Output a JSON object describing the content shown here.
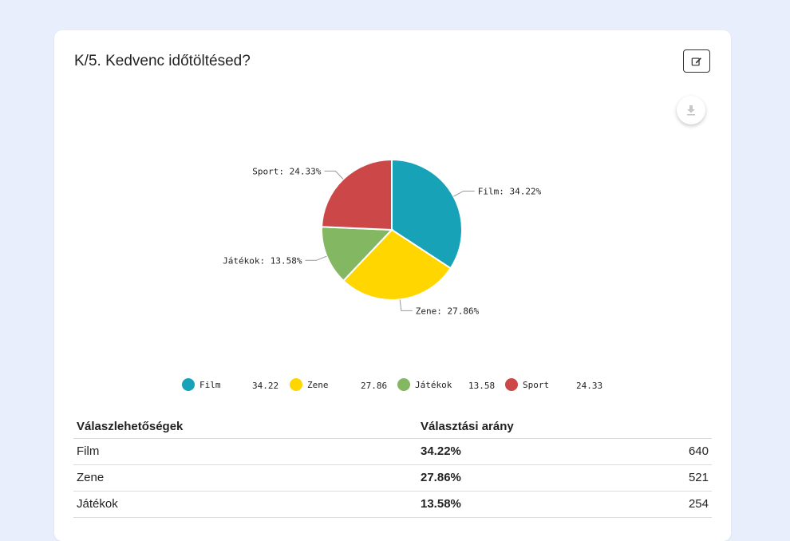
{
  "question": {
    "title": "K/5. Kedvenc időtöltésed?"
  },
  "icons": {
    "edit": "edit-icon",
    "download": "download-icon"
  },
  "chart_data": {
    "type": "pie",
    "categories": [
      "Film",
      "Zene",
      "Játékok",
      "Sport"
    ],
    "values": [
      34.22,
      27.86,
      13.58,
      24.33
    ],
    "colors": [
      "#17a2b8",
      "#ffd600",
      "#84b761",
      "#cc4748"
    ],
    "slice_labels": [
      "Film: 34.22%",
      "Zene: 27.86%",
      "Játékok: 13.58%",
      "Sport: 24.33%"
    ],
    "legend_values": [
      "34.22",
      "27.86",
      "13.58",
      "24.33"
    ],
    "legend_position": "bottom"
  },
  "table": {
    "headers": [
      "Válaszlehetőségek",
      "Választási arány",
      ""
    ],
    "rows": [
      {
        "label": "Film",
        "percent": "34.22%",
        "count": "640"
      },
      {
        "label": "Zene",
        "percent": "27.86%",
        "count": "521"
      },
      {
        "label": "Játékok",
        "percent": "13.58%",
        "count": "254"
      }
    ]
  }
}
